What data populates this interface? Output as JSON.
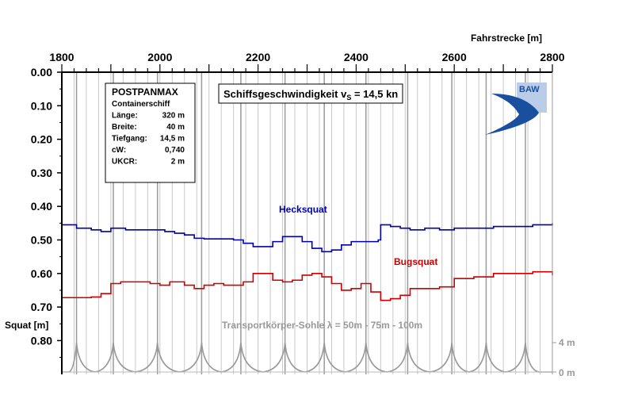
{
  "chart_data": {
    "type": "line",
    "x_axis": {
      "label": "Fahrstrecke [m]",
      "range": [
        1800,
        2800
      ],
      "ticks": [
        1800,
        2000,
        2200,
        2400,
        2600,
        2800
      ],
      "position": "top"
    },
    "y_axis": {
      "label": "Squat [m]",
      "range": [
        0.0,
        0.9
      ],
      "inverted": true,
      "ticks": [
        "0.00",
        "0.10",
        "0.20",
        "0.30",
        "0.40",
        "0.50",
        "0.60",
        "0.70",
        "0.80"
      ]
    },
    "grid": "vertical",
    "subtitle": "Schiffsgeschwindigkeit vS = 14,5 kn",
    "subtitle_parts": {
      "main": "Schiffsgeschwindigkeit v",
      "sub": "S",
      "rest": " = 14,5 kn"
    },
    "series": [
      {
        "name": "Hecksquat",
        "color": "#0000aa",
        "x": [
          1800,
          1830,
          1860,
          1880,
          1900,
          1930,
          1960,
          1990,
          2010,
          2030,
          2050,
          2070,
          2090,
          2110,
          2130,
          2150,
          2170,
          2190,
          2210,
          2230,
          2250,
          2270,
          2290,
          2310,
          2330,
          2350,
          2370,
          2390,
          2410,
          2430,
          2445,
          2450,
          2470,
          2490,
          2510,
          2540,
          2570,
          2600,
          2640,
          2680,
          2720,
          2760,
          2800
        ],
        "y": [
          0.455,
          0.465,
          0.47,
          0.475,
          0.465,
          0.47,
          0.47,
          0.47,
          0.475,
          0.48,
          0.485,
          0.495,
          0.497,
          0.497,
          0.497,
          0.5,
          0.51,
          0.52,
          0.52,
          0.505,
          0.49,
          0.49,
          0.505,
          0.525,
          0.535,
          0.53,
          0.515,
          0.505,
          0.505,
          0.505,
          0.5,
          0.455,
          0.46,
          0.465,
          0.47,
          0.465,
          0.47,
          0.465,
          0.465,
          0.46,
          0.46,
          0.455,
          0.45
        ]
      },
      {
        "name": "Bugsquat",
        "color": "#cc0000",
        "x": [
          1800,
          1820,
          1840,
          1860,
          1880,
          1900,
          1920,
          1950,
          1980,
          2000,
          2020,
          2050,
          2070,
          2090,
          2110,
          2130,
          2150,
          2170,
          2190,
          2210,
          2230,
          2250,
          2270,
          2290,
          2310,
          2330,
          2350,
          2370,
          2390,
          2410,
          2430,
          2450,
          2470,
          2490,
          2510,
          2540,
          2570,
          2600,
          2640,
          2680,
          2720,
          2760,
          2800
        ],
        "y": [
          0.672,
          0.672,
          0.672,
          0.67,
          0.66,
          0.63,
          0.625,
          0.625,
          0.63,
          0.635,
          0.625,
          0.635,
          0.645,
          0.635,
          0.63,
          0.635,
          0.635,
          0.625,
          0.6,
          0.6,
          0.62,
          0.625,
          0.62,
          0.605,
          0.6,
          0.61,
          0.63,
          0.65,
          0.645,
          0.63,
          0.655,
          0.68,
          0.675,
          0.665,
          0.645,
          0.645,
          0.64,
          0.615,
          0.61,
          0.6,
          0.6,
          0.595,
          0.605
        ]
      }
    ],
    "bed_profile": {
      "label": "Transportkörper-Sohle λ = 50m - 75m - 100m",
      "color": "#999999",
      "axis_labels": [
        "4 m",
        "0 m"
      ],
      "crests_x": [
        1830,
        1905,
        1995,
        2085,
        2165,
        2255,
        2335,
        2420,
        2505,
        2595,
        2665,
        2745
      ]
    },
    "annotations": {
      "hecksquat_label": "Hecksquat",
      "bugsquat_label": "Bugsquat"
    }
  },
  "info_box": {
    "title": "POSTPANMAX",
    "rows": [
      {
        "label": "Containerschiff",
        "value": ""
      },
      {
        "label": "Länge:",
        "value": "320 m"
      },
      {
        "label": "Breite:",
        "value": "40 m"
      },
      {
        "label": "Tiefgang:",
        "value": "14,5 m"
      },
      {
        "label": "cW:",
        "value": "0,740"
      },
      {
        "label": "UKCR:",
        "value": "2 m"
      }
    ]
  },
  "logo": {
    "text": "BAW",
    "color": "#1a4fa0"
  }
}
